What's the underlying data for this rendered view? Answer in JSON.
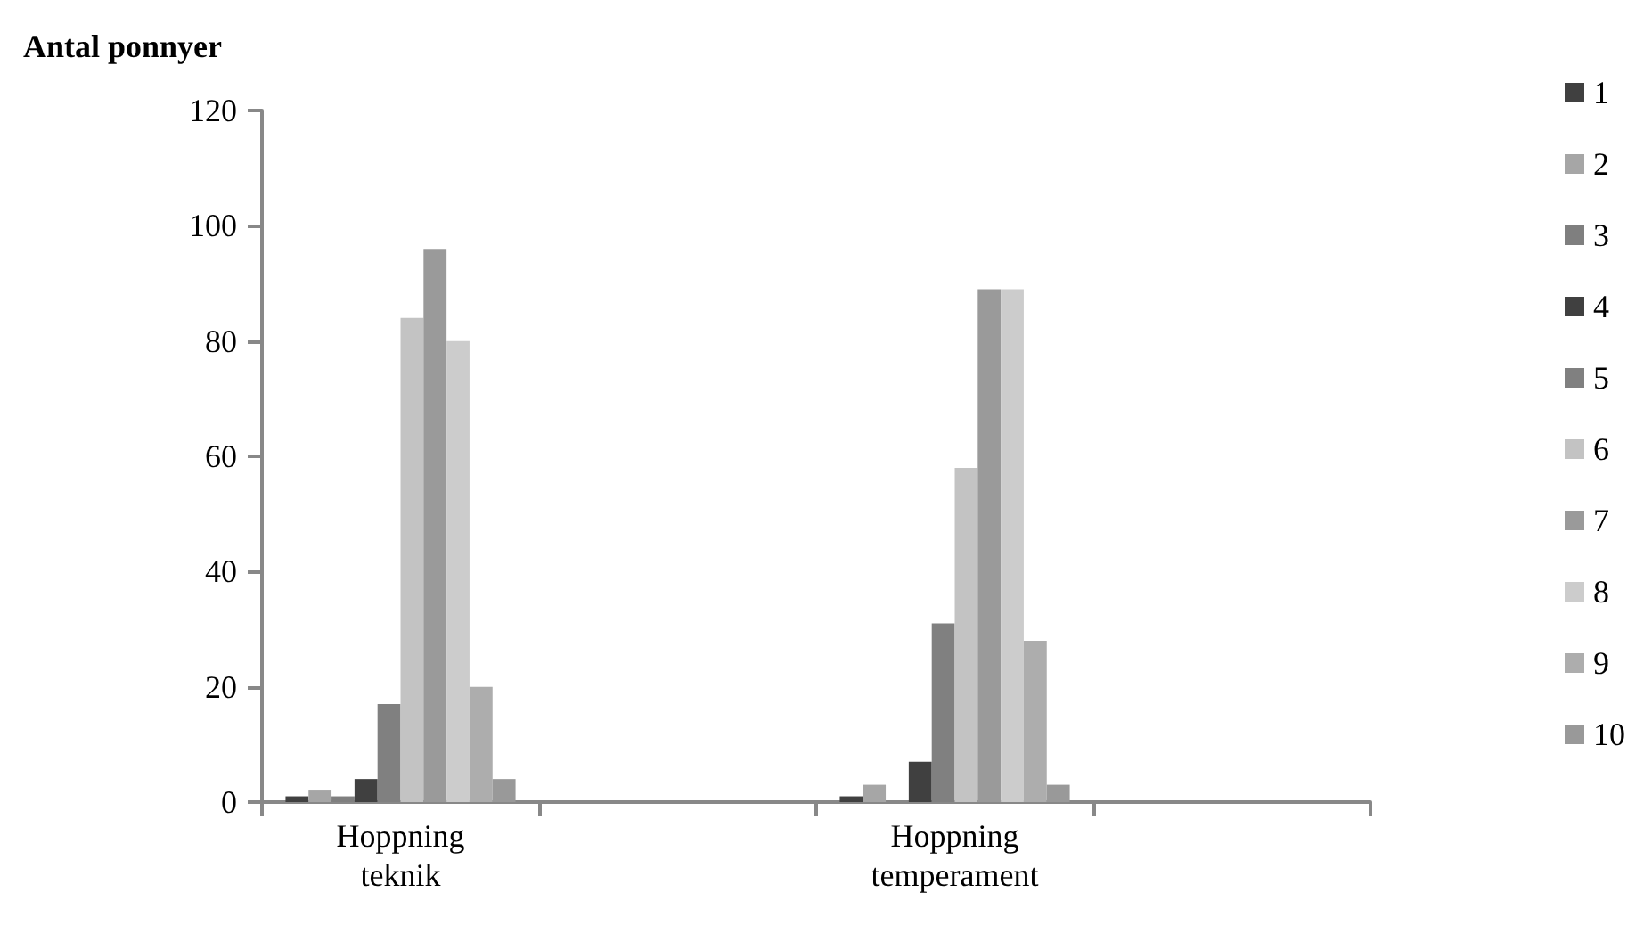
{
  "chart_data": {
    "type": "bar",
    "ylabel": "Antal ponnyer",
    "categories": [
      "Hoppning\nteknik",
      null,
      "Hoppning\ntemperament",
      null
    ],
    "series": [
      {
        "name": "1",
        "color": "#404040",
        "values": [
          1,
          null,
          1,
          null
        ]
      },
      {
        "name": "2",
        "color": "#a6a6a6",
        "values": [
          2,
          null,
          3,
          null
        ]
      },
      {
        "name": "3",
        "color": "#7f7f7f",
        "values": [
          1,
          null,
          0,
          null
        ]
      },
      {
        "name": "4",
        "color": "#404040",
        "values": [
          4,
          null,
          7,
          null
        ]
      },
      {
        "name": "5",
        "color": "#808080",
        "values": [
          17,
          null,
          31,
          null
        ]
      },
      {
        "name": "6",
        "color": "#c3c3c3",
        "values": [
          84,
          null,
          58,
          null
        ]
      },
      {
        "name": "7",
        "color": "#9a9a9a",
        "values": [
          96,
          null,
          89,
          null
        ]
      },
      {
        "name": "8",
        "color": "#cccccc",
        "values": [
          80,
          null,
          89,
          null
        ]
      },
      {
        "name": "9",
        "color": "#adadad",
        "values": [
          20,
          null,
          28,
          null
        ]
      },
      {
        "name": "10",
        "color": "#999999",
        "values": [
          4,
          null,
          3,
          null
        ]
      }
    ],
    "ylim": [
      0,
      120
    ],
    "yticks": [
      0,
      20,
      40,
      60,
      80,
      100,
      120
    ],
    "grid": false,
    "legend": "right"
  }
}
